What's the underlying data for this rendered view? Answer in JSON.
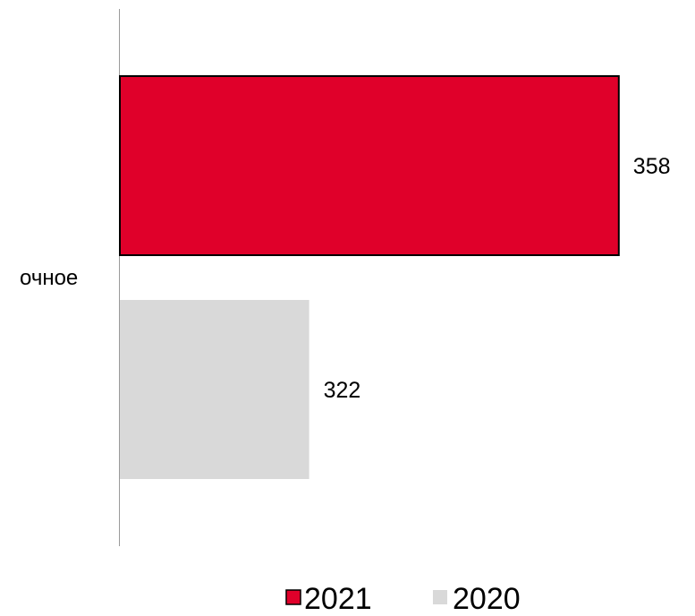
{
  "chart_data": {
    "type": "bar",
    "orientation": "horizontal",
    "categories": [
      "очное"
    ],
    "series": [
      {
        "name": "2021",
        "values": [
          358
        ],
        "color": "#e0002a"
      },
      {
        "name": "2020",
        "values": [
          322
        ],
        "color": "#d9d9d9"
      }
    ],
    "title": "",
    "xlabel": "",
    "ylabel": "",
    "xlim": [
      300,
      360
    ],
    "grid": false,
    "data_labels": true,
    "legend_position": "bottom"
  }
}
